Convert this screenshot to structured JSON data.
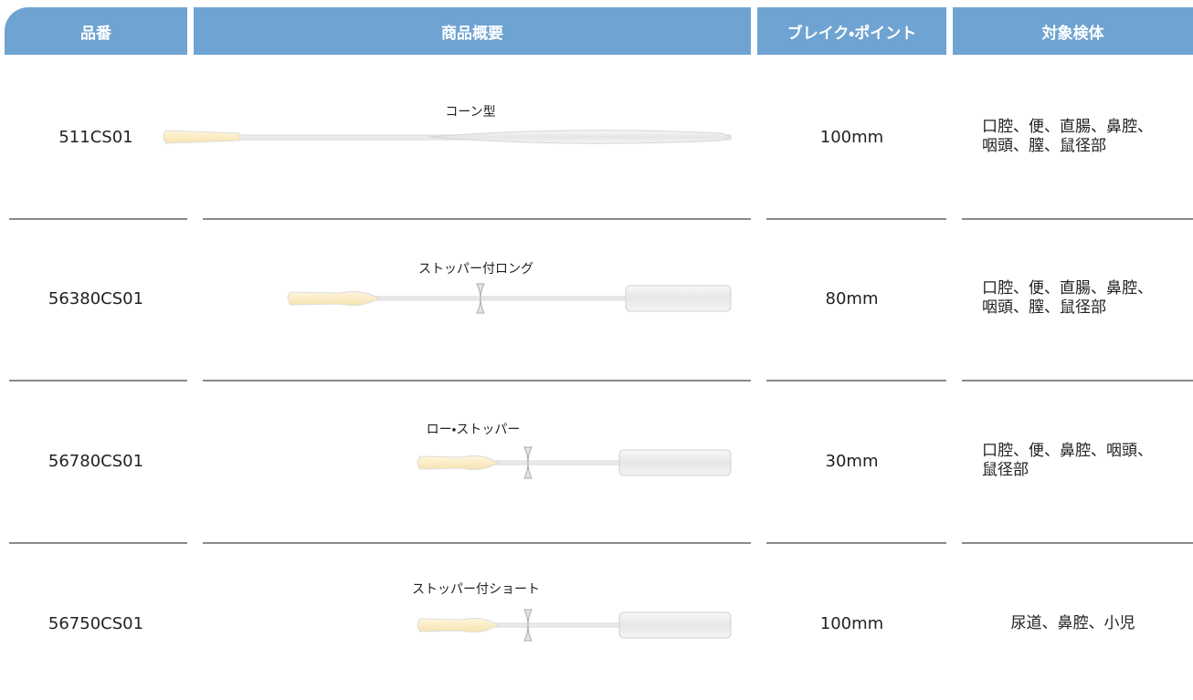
{
  "table": {
    "header": [
      "品番",
      "商品概要",
      "ブレイク・ポイント",
      "対象検体"
    ],
    "rows": [
      {
        "code": "511CS01",
        "name": "コーン型",
        "break_point": "100mm",
        "specimens": [
          "口腔、便、直腸、鼻腔、",
          "咽頭、膣、鼠径部"
        ]
      },
      {
        "code": "56380CS01",
        "name": "ストッパー付ロング",
        "break_point": "80mm",
        "specimens": [
          "口腔、便、直腸、鼻腔、",
          "咽頭、膣、鼠径部"
        ]
      },
      {
        "code": "56780CS01",
        "name": "ロー・ストッパー",
        "break_point": "30mm",
        "specimens": [
          "口腔、便、鼻腔、咽頭、",
          "鼠径部"
        ]
      },
      {
        "code": "56750CS01",
        "name": "ストッパー付ショート",
        "break_point": "100mm",
        "specimens": [
          "尿道、鼻腔、小児"
        ]
      }
    ]
  }
}
